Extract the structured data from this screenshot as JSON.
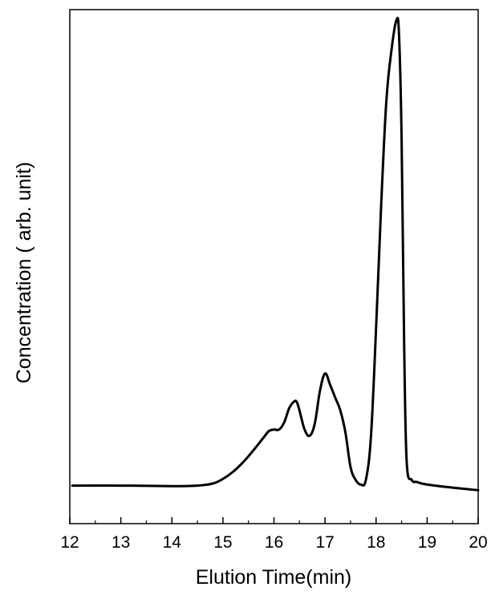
{
  "chart_data": {
    "type": "line",
    "title": "",
    "xlabel": "Elution Time(min)",
    "ylabel": "Concentration ( arb. unit)",
    "xlim": [
      12,
      20
    ],
    "ylim": [
      0,
      1.0
    ],
    "x_ticks": [
      "12",
      "13",
      "14",
      "15",
      "16",
      "17",
      "18",
      "19",
      "20"
    ],
    "grid": false,
    "legend": "none",
    "series": [
      {
        "color": "#000000",
        "x": [
          12.05,
          13.0,
          14.0,
          14.5,
          14.8,
          15.0,
          15.2,
          15.4,
          15.6,
          15.8,
          15.9,
          16.0,
          16.1,
          16.2,
          16.3,
          16.4,
          16.45,
          16.5,
          16.6,
          16.7,
          16.8,
          16.9,
          17.0,
          17.1,
          17.2,
          17.3,
          17.4,
          17.5,
          17.6,
          17.7,
          17.8,
          17.9,
          18.0,
          18.1,
          18.2,
          18.3,
          18.4,
          18.45,
          18.5,
          18.55,
          18.6,
          18.7,
          18.8,
          19.0,
          19.5,
          20.0
        ],
        "y": [
          0.074,
          0.074,
          0.073,
          0.074,
          0.078,
          0.087,
          0.101,
          0.12,
          0.143,
          0.168,
          0.18,
          0.183,
          0.183,
          0.197,
          0.225,
          0.238,
          0.236,
          0.22,
          0.183,
          0.171,
          0.195,
          0.258,
          0.292,
          0.27,
          0.245,
          0.22,
          0.177,
          0.11,
          0.085,
          0.076,
          0.085,
          0.17,
          0.38,
          0.62,
          0.82,
          0.92,
          0.98,
          0.95,
          0.75,
          0.35,
          0.12,
          0.085,
          0.081,
          0.076,
          0.07,
          0.065
        ]
      }
    ]
  }
}
